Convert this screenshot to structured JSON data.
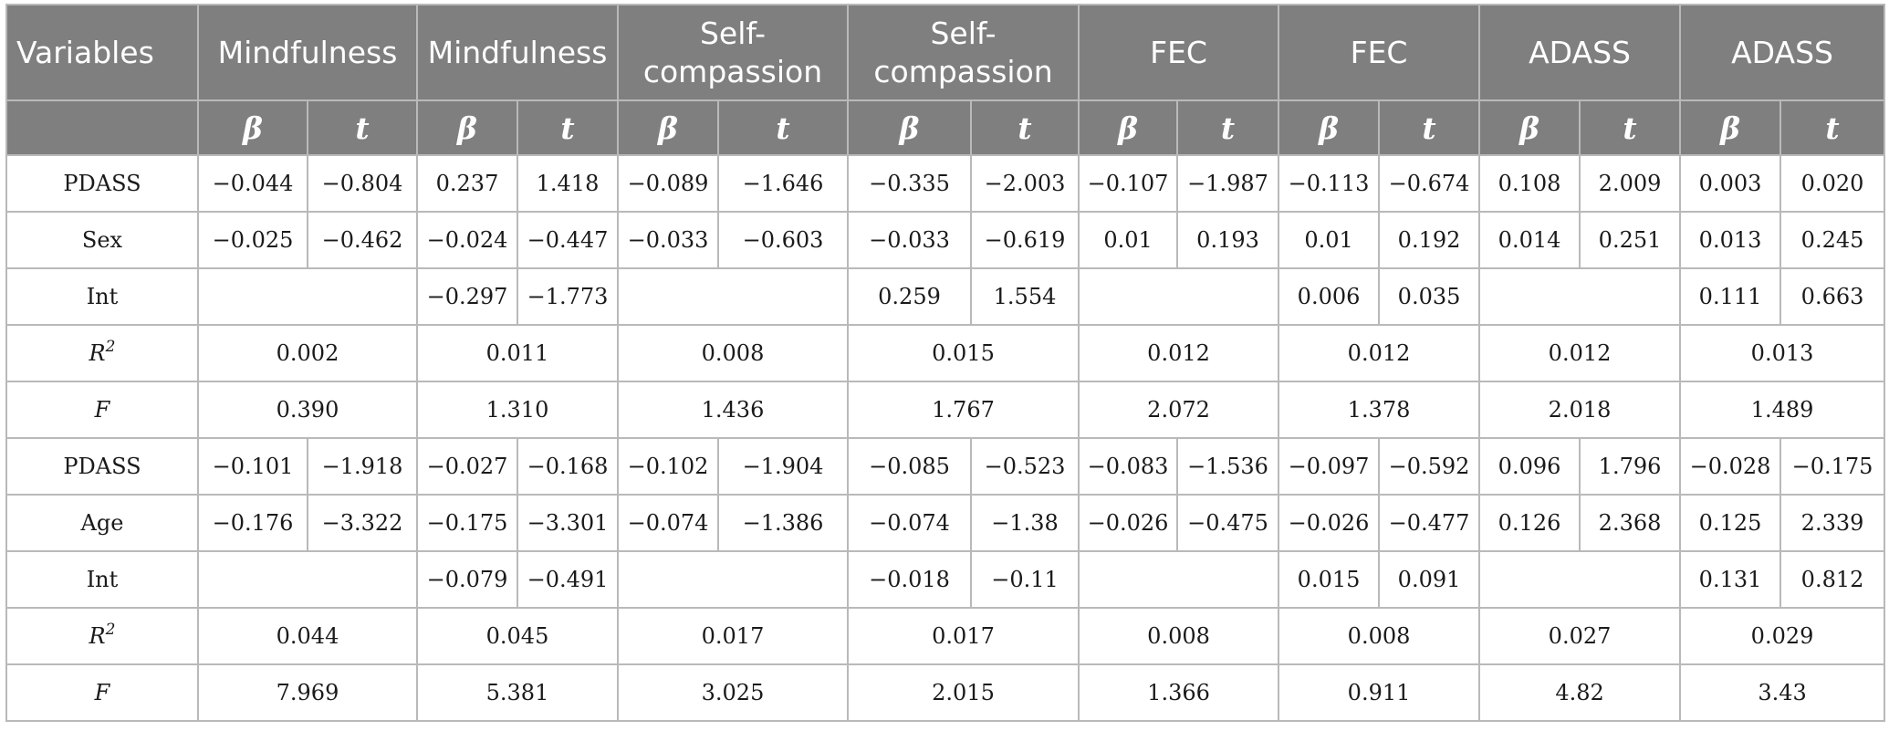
{
  "header": {
    "variables": "Variables",
    "groups": [
      "Mindfulness",
      "Mindfulness",
      "Self-compassion",
      "Self-compassion",
      "FEC",
      "FEC",
      "ADASS",
      "ADASS"
    ],
    "beta": "β",
    "t": "t"
  },
  "sections": [
    {
      "pred_rows": [
        {
          "label": "PDASS",
          "cells": [
            "−0.044",
            "−0.804",
            "0.237",
            "1.418",
            "−0.089",
            "−1.646",
            "−0.335",
            "−2.003",
            "−0.107",
            "−1.987",
            "−0.113",
            "−0.674",
            "0.108",
            "2.009",
            "0.003",
            "0.020"
          ]
        },
        {
          "label": "Sex",
          "cells": [
            "−0.025",
            "−0.462",
            "−0.024",
            "−0.447",
            "−0.033",
            "−0.603",
            "−0.033",
            "−0.619",
            "0.01",
            "0.193",
            "0.01",
            "0.192",
            "0.014",
            "0.251",
            "0.013",
            "0.245"
          ]
        },
        {
          "label": "Int",
          "cells": [
            "",
            "",
            "−0.297",
            "−1.773",
            "",
            "",
            "0.259",
            "1.554",
            "",
            "",
            "0.006",
            "0.035",
            "",
            "",
            "0.111",
            "0.663"
          ]
        }
      ],
      "r2": {
        "label": "R",
        "sup": "2",
        "values": [
          "0.002",
          "0.011",
          "0.008",
          "0.015",
          "0.012",
          "0.012",
          "0.012",
          "0.013"
        ]
      },
      "f": {
        "label": "F",
        "values": [
          "0.390",
          "1.310",
          "1.436",
          "1.767",
          "2.072",
          "1.378",
          "2.018",
          "1.489"
        ]
      }
    },
    {
      "pred_rows": [
        {
          "label": "PDASS",
          "cells": [
            "−0.101",
            "−1.918",
            "−0.027",
            "−0.168",
            "−0.102",
            "−1.904",
            "−0.085",
            "−0.523",
            "−0.083",
            "−1.536",
            "−0.097",
            "−0.592",
            "0.096",
            "1.796",
            "−0.028",
            "−0.175"
          ]
        },
        {
          "label": "Age",
          "cells": [
            "−0.176",
            "−3.322",
            "−0.175",
            "−3.301",
            "−0.074",
            "−1.386",
            "−0.074",
            "−1.38",
            "−0.026",
            "−0.475",
            "−0.026",
            "−0.477",
            "0.126",
            "2.368",
            "0.125",
            "2.339"
          ]
        },
        {
          "label": "Int",
          "cells": [
            "",
            "",
            "−0.079",
            "−0.491",
            "",
            "",
            "−0.018",
            "−0.11",
            "",
            "",
            "0.015",
            "0.091",
            "",
            "",
            "0.131",
            "0.812"
          ]
        }
      ],
      "r2": {
        "label": "R",
        "sup": "2",
        "values": [
          "0.044",
          "0.045",
          "0.017",
          "0.017",
          "0.008",
          "0.008",
          "0.027",
          "0.029"
        ]
      },
      "f": {
        "label": "F",
        "values": [
          "7.969",
          "5.381",
          "3.025",
          "2.015",
          "1.366",
          "0.911",
          "4.82",
          "3.43"
        ]
      }
    }
  ]
}
